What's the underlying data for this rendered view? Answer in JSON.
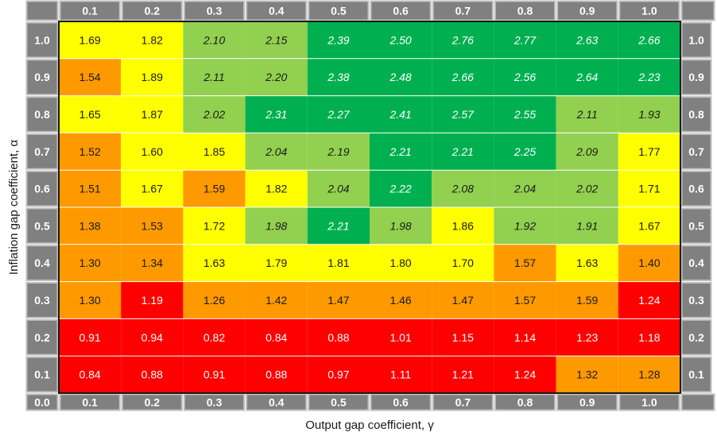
{
  "chart_data": {
    "type": "heatmap",
    "title": "",
    "xlabel": "Output gap coefficient, γ",
    "ylabel": "Inflation gap coefficient,  α",
    "x_ticks": [
      "0.1",
      "0.2",
      "0.3",
      "0.4",
      "0.5",
      "0.6",
      "0.7",
      "0.8",
      "0.9",
      "1.0"
    ],
    "y_ticks": [
      "1.0",
      "0.9",
      "0.8",
      "0.7",
      "0.6",
      "0.5",
      "0.4",
      "0.3",
      "0.2",
      "0.1"
    ],
    "origin_label": "0.0",
    "values": [
      [
        "1.69",
        "1.82",
        "2.10",
        "2.15",
        "2.39",
        "2.50",
        "2.76",
        "2.77",
        "2.63",
        "2.66"
      ],
      [
        "1.54",
        "1.89",
        "2.11",
        "2.20",
        "2.38",
        "2.48",
        "2.66",
        "2.56",
        "2.64",
        "2.23"
      ],
      [
        "1.65",
        "1.87",
        "2.02",
        "2.31",
        "2.27",
        "2.41",
        "2.57",
        "2.55",
        "2.11",
        "1.93"
      ],
      [
        "1.52",
        "1.60",
        "1.85",
        "2.04",
        "2.19",
        "2.21",
        "2.21",
        "2.25",
        "2.09",
        "1.77"
      ],
      [
        "1.51",
        "1.67",
        "1.59",
        "1.82",
        "2.04",
        "2.22",
        "2.08",
        "2.04",
        "2.02",
        "1.71"
      ],
      [
        "1.38",
        "1.53",
        "1.72",
        "1.98",
        "2.21",
        "1.98",
        "1.86",
        "1.92",
        "1.91",
        "1.67"
      ],
      [
        "1.30",
        "1.34",
        "1.63",
        "1.79",
        "1.81",
        "1.80",
        "1.70",
        "1.57",
        "1.63",
        "1.40"
      ],
      [
        "1.30",
        "1.19",
        "1.26",
        "1.42",
        "1.47",
        "1.46",
        "1.47",
        "1.57",
        "1.59",
        "1.24"
      ],
      [
        "0.91",
        "0.94",
        "0.82",
        "0.84",
        "0.88",
        "1.01",
        "1.15",
        "1.14",
        "1.23",
        "1.18"
      ],
      [
        "0.84",
        "0.88",
        "0.91",
        "0.88",
        "0.97",
        "1.11",
        "1.21",
        "1.24",
        "1.32",
        "1.28"
      ]
    ],
    "categories_matrix": [
      [
        "Y",
        "Y",
        "LG",
        "LG",
        "DG",
        "DG",
        "DG",
        "DG",
        "DG",
        "DG"
      ],
      [
        "O",
        "Y",
        "LG",
        "LG",
        "DG",
        "DG",
        "DG",
        "DG",
        "DG",
        "DG"
      ],
      [
        "Y",
        "Y",
        "LG",
        "DG",
        "DG",
        "DG",
        "DG",
        "DG",
        "LG",
        "LG"
      ],
      [
        "O",
        "Y",
        "Y",
        "LG",
        "LG",
        "DG",
        "DG",
        "DG",
        "LG",
        "Y"
      ],
      [
        "O",
        "Y",
        "O",
        "Y",
        "LG",
        "DG",
        "LG",
        "LG",
        "LG",
        "Y"
      ],
      [
        "O",
        "O",
        "Y",
        "LG",
        "DG",
        "LG",
        "Y",
        "LG",
        "LG",
        "Y"
      ],
      [
        "O",
        "O",
        "Y",
        "Y",
        "Y",
        "Y",
        "Y",
        "O",
        "Y",
        "O"
      ],
      [
        "O",
        "R",
        "O",
        "O",
        "O",
        "O",
        "O",
        "O",
        "O",
        "R"
      ],
      [
        "R",
        "R",
        "R",
        "R",
        "R",
        "R",
        "R",
        "R",
        "R",
        "R"
      ],
      [
        "R",
        "R",
        "R",
        "R",
        "R",
        "R",
        "R",
        "R",
        "O",
        "O"
      ]
    ],
    "colors": {
      "R": {
        "fill": "#ff0000",
        "text": "#ffffff"
      },
      "O": {
        "fill": "#ff9900",
        "text": "#1a1a1a"
      },
      "Y": {
        "fill": "#ffff00",
        "text": "#1a1a1a"
      },
      "LG": {
        "fill": "#92d050",
        "text": "#1a1a1a"
      },
      "DG": {
        "fill": "#00b050",
        "text": "#ffffff"
      },
      "header": "#808080",
      "header_stroke": "#bfbfbf",
      "grid_line": "#ffffff",
      "frame": "#1a1a1a"
    },
    "italic_categories": [
      "LG",
      "DG"
    ],
    "legend": "none",
    "grid": true
  }
}
